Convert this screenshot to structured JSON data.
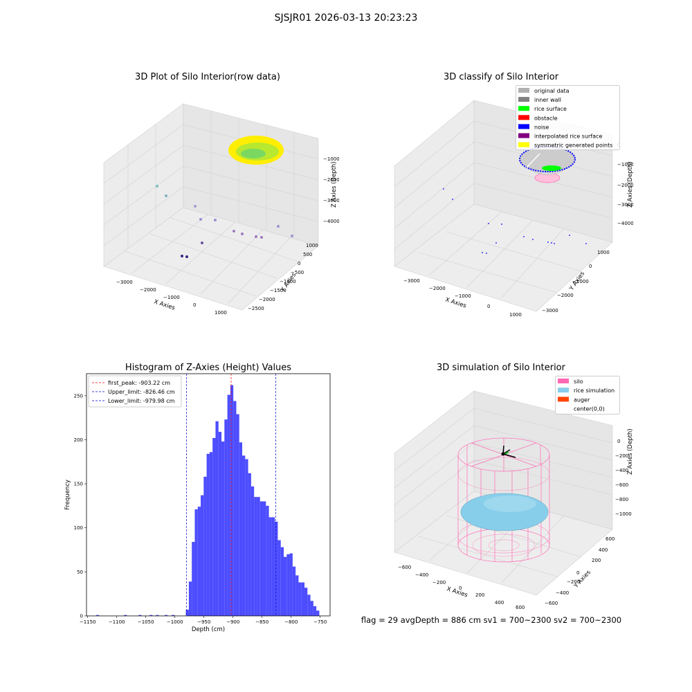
{
  "suptitle": "SJSJR01 2026-03-13 20:23:23",
  "footer": "flag = 29  avgDepth = 886 cm  sv1 = 700~2300  sv2 = 700~2300",
  "colors": {
    "hist_bar": "#4d4dff",
    "peak_line": "#ff0000",
    "limit_line": "#0000cc",
    "silo": "#ff69b4",
    "rice_sim": "#87ceeb",
    "auger": "#ff4500",
    "rice_surface": "#00ff00",
    "noise": "#0000ff",
    "inner_wall": "#808080",
    "original": "#b0b0b0",
    "interp": "#800080",
    "symmetric": "#ffff00"
  },
  "chart_data": [
    {
      "type": "scatter",
      "subtype": "3d",
      "title": "3D Plot of Silo Interior(row data)",
      "xlabel": "X Axies",
      "ylabel": "Y Axies",
      "zlabel": "Z Axies (Depth)",
      "x_ticks": [
        "-3000",
        "-2000",
        "-1000",
        "0",
        "1000"
      ],
      "y_ticks": [
        "1000",
        "500",
        "0",
        "-500",
        "-1000",
        "-1500",
        "-2000",
        "-2500"
      ],
      "z_ticks": [
        "-1000",
        "-2000",
        "-3000",
        "-4000"
      ],
      "grid": true
    },
    {
      "type": "scatter",
      "subtype": "3d",
      "title": "3D classify of Silo Interior",
      "xlabel": "X Axies",
      "ylabel": "Y Axies",
      "zlabel": "Z Axies (Depth)",
      "x_ticks": [
        "-3000",
        "-2000",
        "-1000",
        "0",
        "1000"
      ],
      "y_ticks": [
        "1000",
        "0",
        "-1000",
        "-2000",
        "-3000"
      ],
      "z_ticks": [
        "0",
        "-1000",
        "-2000",
        "-3000",
        "-4000"
      ],
      "legend": [
        "original data",
        "inner wall",
        "rice surface",
        "obstacle",
        "noise",
        "interpolated rice surface",
        "symmetric generated points"
      ],
      "legend_colors": [
        "#b0b0b0",
        "#808080",
        "#00ff00",
        "#ff0000",
        "#0000ff",
        "#800080",
        "#ffff00"
      ],
      "legend_position": "top-right",
      "grid": true
    },
    {
      "type": "bar",
      "subtype": "histogram",
      "title": "Histogram of Z-Axies (Height) Values",
      "xlabel": "Depth (cm)",
      "ylabel": "Frequency",
      "xlim": [
        -1152,
        -733
      ],
      "ylim": [
        0,
        275
      ],
      "x_ticks": [
        -1150,
        -1100,
        -1050,
        -1000,
        -950,
        -900,
        -850,
        -800,
        -750
      ],
      "y_ticks": [
        0,
        50,
        100,
        150,
        200,
        250
      ],
      "bin_width": 5.1,
      "bins": [
        {
          "x": -1133,
          "count": 1
        },
        {
          "x": -1085,
          "count": 1
        },
        {
          "x": -1060,
          "count": 1
        },
        {
          "x": -1041,
          "count": 1
        },
        {
          "x": -1030,
          "count": 1
        },
        {
          "x": -1015,
          "count": 1
        },
        {
          "x": -1003,
          "count": 1
        },
        {
          "x": -978.5,
          "count": 7
        },
        {
          "x": -973.4,
          "count": 39
        },
        {
          "x": -968.3,
          "count": 84
        },
        {
          "x": -963.2,
          "count": 121
        },
        {
          "x": -958.1,
          "count": 124
        },
        {
          "x": -953.0,
          "count": 137
        },
        {
          "x": -947.9,
          "count": 158
        },
        {
          "x": -942.8,
          "count": 184
        },
        {
          "x": -937.7,
          "count": 186
        },
        {
          "x": -932.6,
          "count": 202
        },
        {
          "x": -927.5,
          "count": 221
        },
        {
          "x": -922.4,
          "count": 209
        },
        {
          "x": -917.3,
          "count": 198
        },
        {
          "x": -912.2,
          "count": 223
        },
        {
          "x": -907.1,
          "count": 251
        },
        {
          "x": -902.0,
          "count": 262
        },
        {
          "x": -896.9,
          "count": 244
        },
        {
          "x": -891.8,
          "count": 229
        },
        {
          "x": -886.7,
          "count": 197
        },
        {
          "x": -881.6,
          "count": 182
        },
        {
          "x": -876.5,
          "count": 178
        },
        {
          "x": -871.4,
          "count": 162
        },
        {
          "x": -866.3,
          "count": 147
        },
        {
          "x": -861.2,
          "count": 135
        },
        {
          "x": -856.1,
          "count": 135
        },
        {
          "x": -851.0,
          "count": 130
        },
        {
          "x": -845.9,
          "count": 130
        },
        {
          "x": -840.8,
          "count": 125
        },
        {
          "x": -835.7,
          "count": 112
        },
        {
          "x": -830.6,
          "count": 112
        },
        {
          "x": -825.5,
          "count": 107
        },
        {
          "x": -820.4,
          "count": 86
        },
        {
          "x": -815.3,
          "count": 78
        },
        {
          "x": -810.2,
          "count": 67
        },
        {
          "x": -805.1,
          "count": 70
        },
        {
          "x": -800.0,
          "count": 71
        },
        {
          "x": -794.9,
          "count": 56
        },
        {
          "x": -789.8,
          "count": 46
        },
        {
          "x": -784.7,
          "count": 38
        },
        {
          "x": -779.6,
          "count": 38
        },
        {
          "x": -774.5,
          "count": 32
        },
        {
          "x": -769.4,
          "count": 24
        },
        {
          "x": -764.3,
          "count": 17
        },
        {
          "x": -759.2,
          "count": 11
        },
        {
          "x": -754.1,
          "count": 6
        }
      ],
      "vlines": [
        {
          "label": "first_peak: -903.22 cm",
          "x": -903.22,
          "color": "#ff0000"
        },
        {
          "label": "Upper_limit: -826.46 cm",
          "x": -826.46,
          "color": "#0000cc"
        },
        {
          "label": "Lower_limit: -979.98 cm",
          "x": -979.98,
          "color": "#0000cc"
        }
      ],
      "legend_position": "top-left"
    },
    {
      "type": "scatter",
      "subtype": "3d-surface",
      "title": "3D simulation of Silo Interior",
      "xlabel": "X Axies",
      "ylabel": "Y Axies",
      "zlabel": "Z Axies (Depth)",
      "x_ticks": [
        "-600",
        "-400",
        "-200",
        "0",
        "200",
        "400",
        "600"
      ],
      "y_ticks": [
        "600",
        "400",
        "200",
        "0",
        "-200",
        "-400",
        "-600"
      ],
      "z_ticks": [
        "0",
        "-200",
        "-400",
        "-600",
        "-800",
        "-1000"
      ],
      "legend": [
        "silo",
        "rice simulation",
        "auger",
        "center(0,0)"
      ],
      "legend_colors": [
        "#ff69b4",
        "#87ceeb",
        "#ff4500",
        "#ffffff"
      ],
      "legend_position": "top-right",
      "grid": true
    }
  ]
}
